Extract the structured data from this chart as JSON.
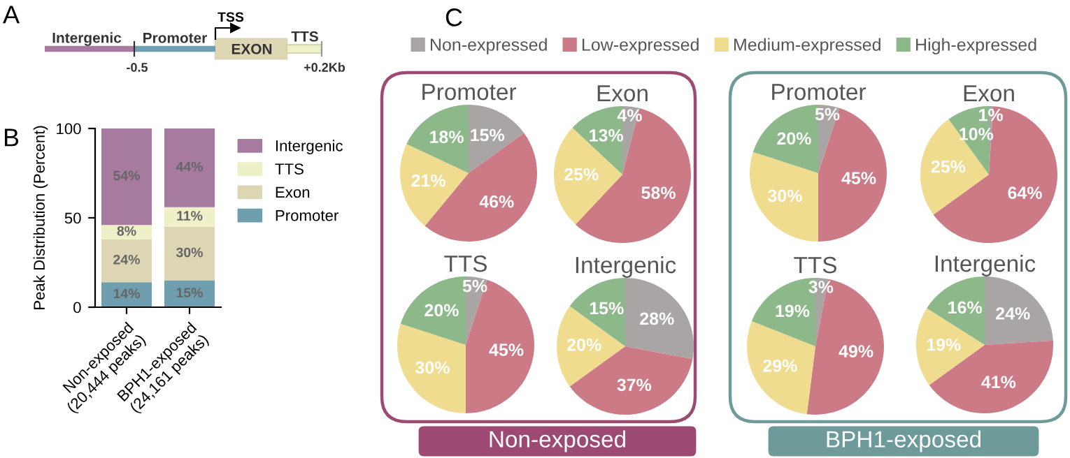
{
  "chart_data": [
    {
      "type": "other",
      "title": "A",
      "annotations": [
        "Intergenic",
        "Promoter",
        "TSS",
        "EXON",
        "TTS",
        "-0.5",
        "+0.2Kb"
      ]
    },
    {
      "type": "bar",
      "title": "B",
      "ylabel": "Peak Distribution (Percent)",
      "categories": [
        "Non-exposed\n(20,444 peaks)",
        "BPH1-exposed\n(24,161 peaks)"
      ],
      "stacked": true,
      "ylim": [
        0,
        100
      ],
      "yticks": [
        0,
        50,
        100
      ],
      "legend": "right",
      "grid": false,
      "series": [
        {
          "name": "Promoter",
          "color": "#6f9eae",
          "values": [
            14,
            15
          ],
          "value_labels": [
            "14%",
            "15%"
          ]
        },
        {
          "name": "Exon",
          "color": "#ddd6b5",
          "values": [
            24,
            30
          ],
          "value_labels": [
            "24%",
            "30%"
          ]
        },
        {
          "name": "TTS",
          "color": "#eef0c8",
          "values": [
            8,
            11
          ],
          "value_labels": [
            "8%",
            "11%"
          ]
        },
        {
          "name": "Intergenic",
          "color": "#a77a9f",
          "values": [
            54,
            44
          ],
          "value_labels": [
            "54%",
            "44%"
          ]
        }
      ]
    },
    {
      "type": "other",
      "title": "C",
      "annotations": [
        "Non-exposed",
        "BPH1-exposed"
      ]
    },
    {
      "type": "pie",
      "title": "Promoter",
      "legend": "top",
      "categories": [
        "Non-expressed",
        "Low-expressed",
        "Medium-expressed",
        "High-expressed"
      ],
      "colors": [
        "#aaa5a5",
        "#cc7a86",
        "#f0dc8e",
        "#8db88a"
      ],
      "values": [
        15,
        46,
        21,
        18
      ],
      "value_labels": [
        "15%",
        "46%",
        "21%",
        "18%"
      ]
    },
    {
      "type": "pie",
      "title": "Exon",
      "colors": [
        "#aaa5a5",
        "#cc7a86",
        "#f0dc8e",
        "#8db88a"
      ],
      "values": [
        4,
        58,
        25,
        13
      ],
      "value_labels": [
        "4%",
        "58%",
        "25%",
        "13%"
      ]
    },
    {
      "type": "pie",
      "title": "Promoter",
      "colors": [
        "#aaa5a5",
        "#cc7a86",
        "#f0dc8e",
        "#8db88a"
      ],
      "values": [
        5,
        45,
        30,
        20
      ],
      "value_labels": [
        "5%",
        "45%",
        "30%",
        "20%"
      ]
    },
    {
      "type": "pie",
      "title": "Exon",
      "colors": [
        "#aaa5a5",
        "#cc7a86",
        "#f0dc8e",
        "#8db88a"
      ],
      "values": [
        1,
        64,
        25,
        10
      ],
      "value_labels": [
        "1%",
        "64%",
        "25%",
        "10%"
      ]
    },
    {
      "type": "pie",
      "title": "TTS",
      "colors": [
        "#aaa5a5",
        "#cc7a86",
        "#f0dc8e",
        "#8db88a"
      ],
      "values": [
        5,
        45,
        30,
        20
      ],
      "value_labels": [
        "5%",
        "45%",
        "30%",
        "20%"
      ]
    },
    {
      "type": "pie",
      "title": "Intergenic",
      "colors": [
        "#aaa5a5",
        "#cc7a86",
        "#f0dc8e",
        "#8db88a"
      ],
      "values": [
        28,
        37,
        20,
        15
      ],
      "value_labels": [
        "28%",
        "37%",
        "20%",
        "15%"
      ]
    },
    {
      "type": "pie",
      "title": "TTS",
      "colors": [
        "#aaa5a5",
        "#cc7a86",
        "#f0dc8e",
        "#8db88a"
      ],
      "values": [
        3,
        49,
        29,
        19
      ],
      "value_labels": [
        "3%",
        "49%",
        "29%",
        "19%"
      ]
    },
    {
      "type": "pie",
      "title": "Intergenic",
      "colors": [
        "#aaa5a5",
        "#cc7a86",
        "#f0dc8e",
        "#8db88a"
      ],
      "values": [
        24,
        41,
        19,
        16
      ],
      "value_labels": [
        "24%",
        "41%",
        "19%",
        "16%"
      ]
    }
  ]
}
